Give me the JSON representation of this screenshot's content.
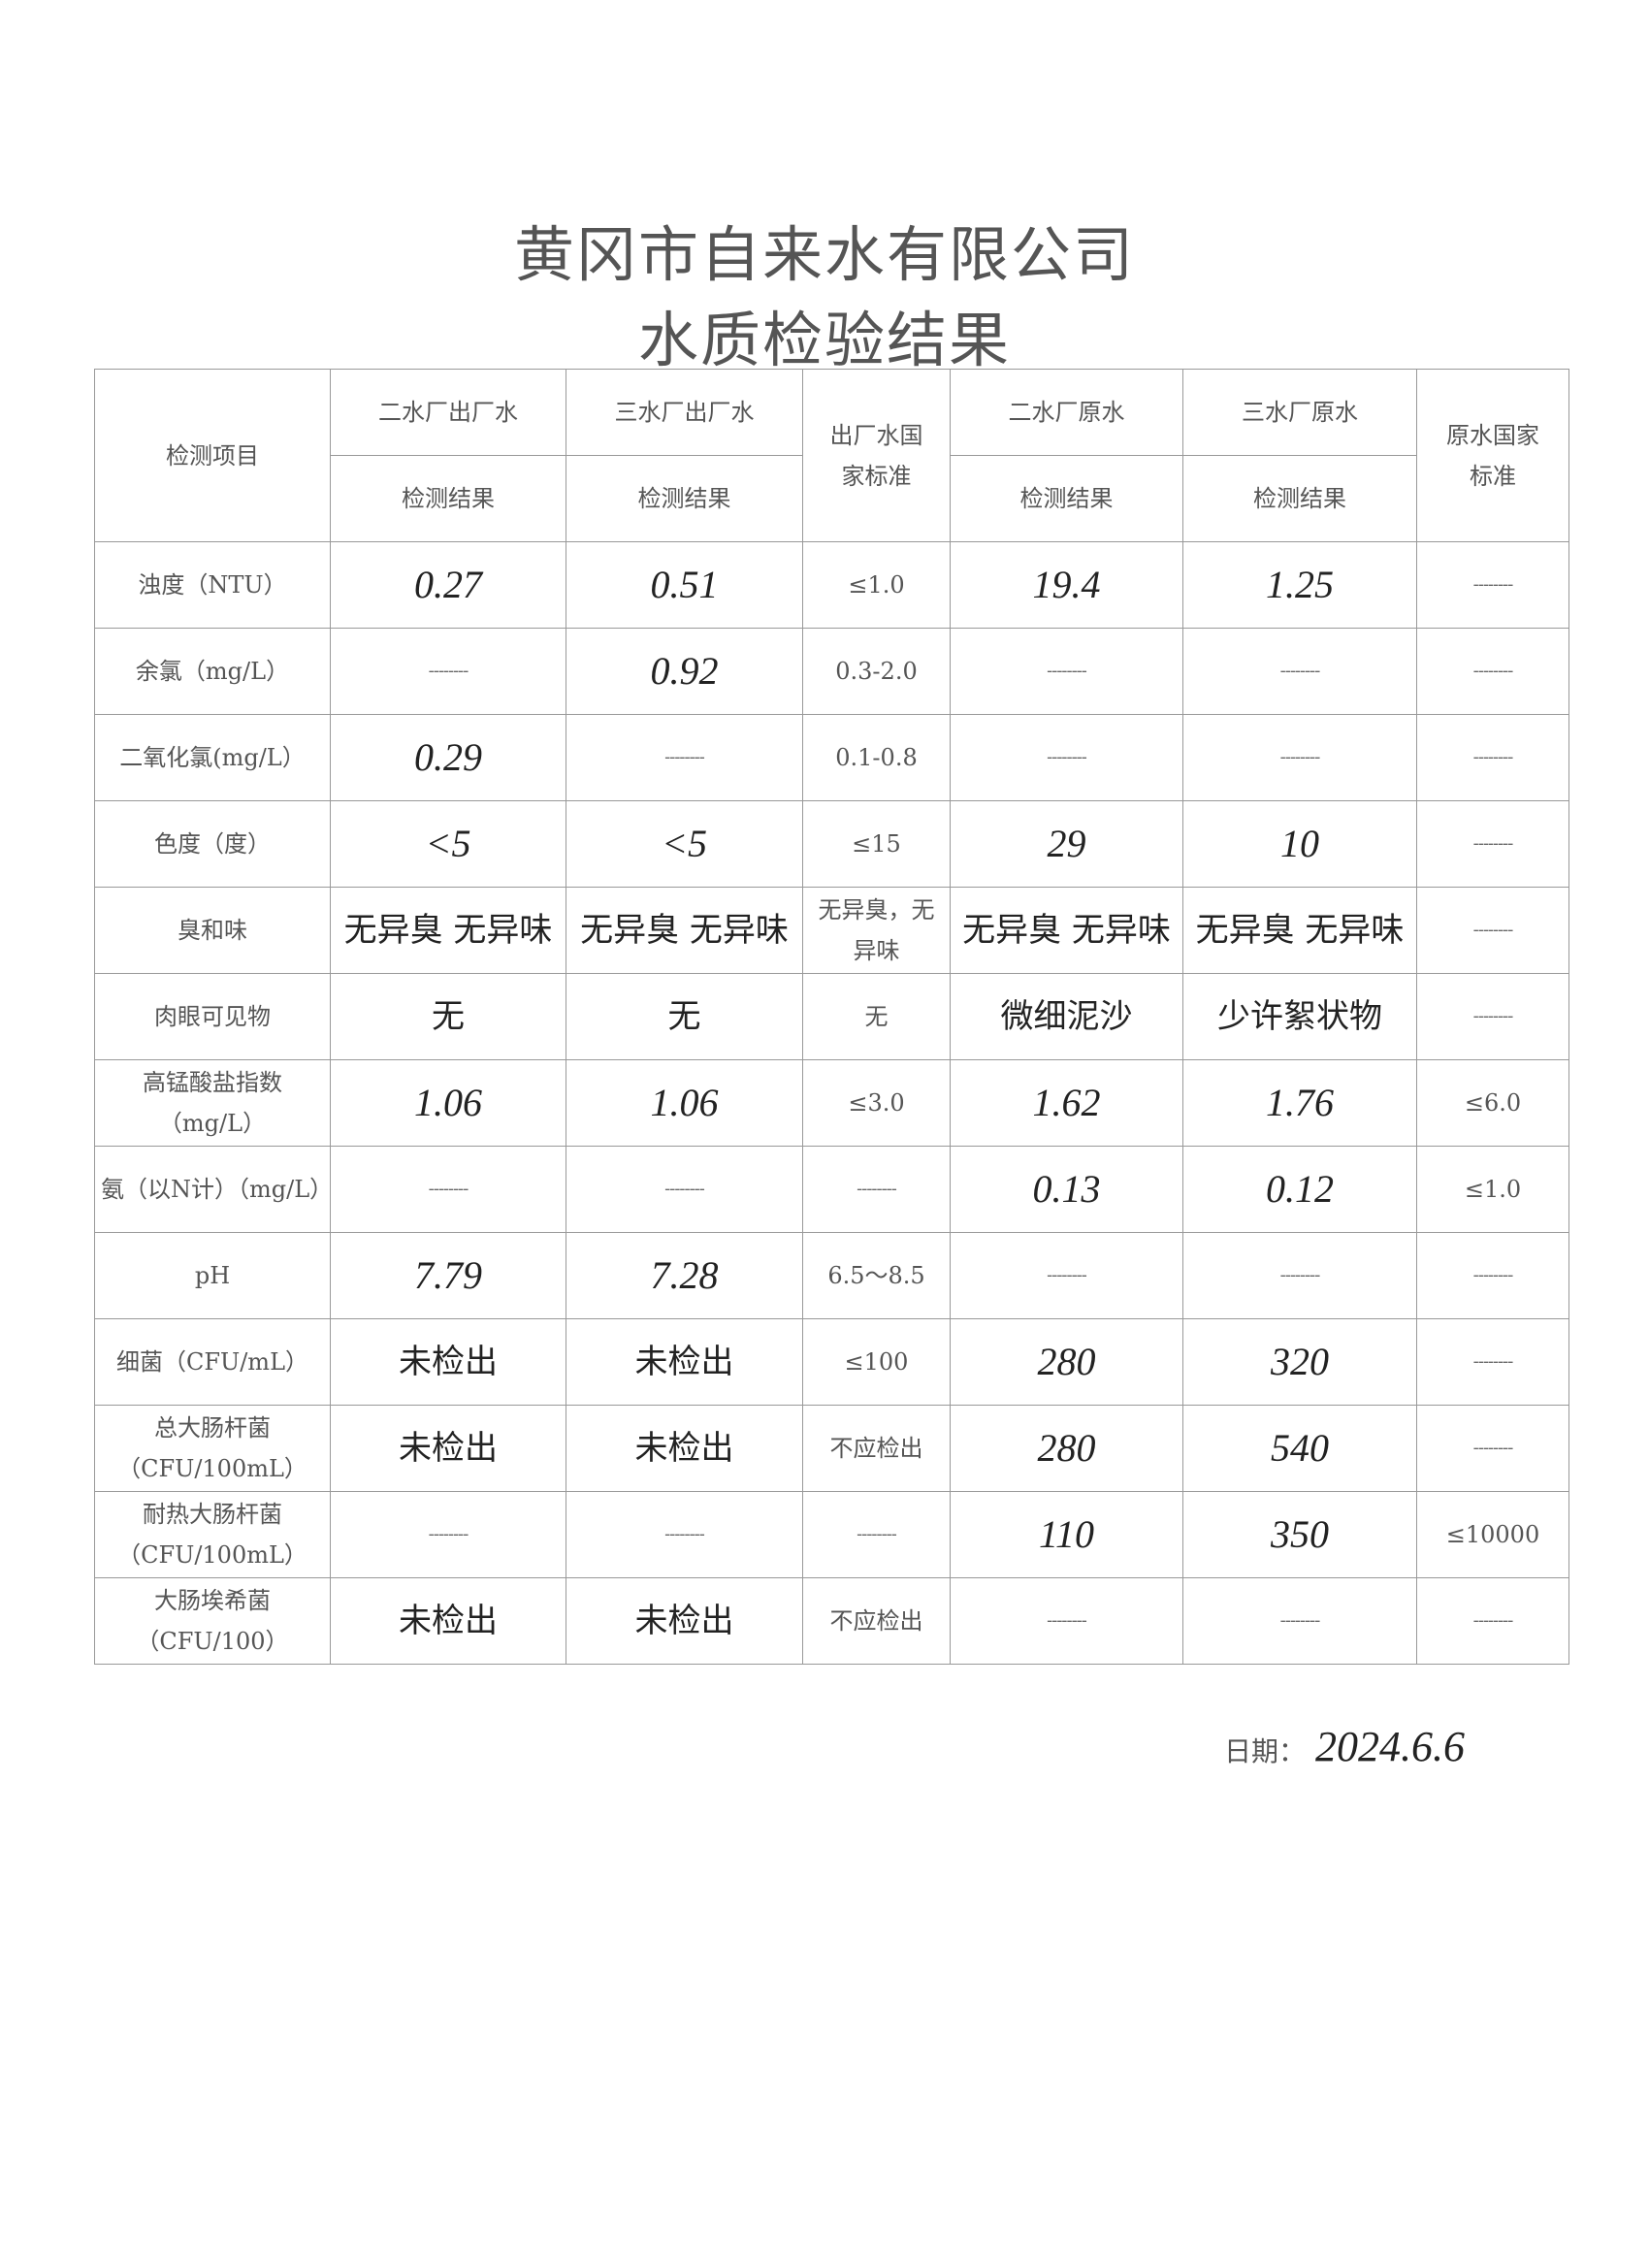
{
  "title_line1": "黄冈市自来水有限公司",
  "title_line2": "水质检验结果",
  "header": {
    "item": "检测项目",
    "col1": "二水厂出厂水",
    "col2": "三水厂出厂水",
    "col3": "出厂水国家标准",
    "col4": "二水厂原水",
    "col5": "三水厂原水",
    "col6": "原水国家标准",
    "sub": "检测结果"
  },
  "rows": [
    {
      "item": "浊度（NTU）",
      "v": [
        "0.27",
        "0.51",
        "≤1.0",
        "19.4",
        "1.25",
        "--------"
      ]
    },
    {
      "item": "余氯（mg/L）",
      "v": [
        "--------",
        "0.92",
        "0.3-2.0",
        "--------",
        "--------",
        "--------"
      ]
    },
    {
      "item": "二氧化氯(mg/L）",
      "v": [
        "0.29",
        "--------",
        "0.1-0.8",
        "--------",
        "--------",
        "--------"
      ]
    },
    {
      "item": "色度（度）",
      "v": [
        "<5",
        "<5",
        "≤15",
        "29",
        "10",
        "--------"
      ]
    },
    {
      "item": "臭和味",
      "v": [
        "无异臭 无异味",
        "无异臭 无异味",
        "无异臭，无异味",
        "无异臭 无异味",
        "无异臭 无异味",
        "--------"
      ]
    },
    {
      "item": "肉眼可见物",
      "v": [
        "无",
        "无",
        "无",
        "微细泥沙",
        "少许絮状物",
        "--------"
      ]
    },
    {
      "item": "高锰酸盐指数（mg/L）",
      "v": [
        "1.06",
        "1.06",
        "≤3.0",
        "1.62",
        "1.76",
        "≤6.0"
      ]
    },
    {
      "item": "氨（以N计）（mg/L）",
      "v": [
        "--------",
        "--------",
        "--------",
        "0.13",
        "0.12",
        "≤1.0"
      ]
    },
    {
      "item": "pH",
      "v": [
        "7.79",
        "7.28",
        "6.5～8.5",
        "--------",
        "--------",
        "--------"
      ]
    },
    {
      "item": "细菌（CFU/mL）",
      "v": [
        "未检出",
        "未检出",
        "≤100",
        "280",
        "320",
        "--------"
      ]
    },
    {
      "item": "总大肠杆菌（CFU/100mL）",
      "v": [
        "未检出",
        "未检出",
        "不应检出",
        "280",
        "540",
        "--------"
      ]
    },
    {
      "item": "耐热大肠杆菌（CFU/100mL）",
      "v": [
        "--------",
        "--------",
        "--------",
        "110",
        "350",
        "≤10000"
      ]
    },
    {
      "item": "大肠埃希菌（CFU/100）",
      "v": [
        "未检出",
        "未检出",
        "不应检出",
        "--------",
        "--------",
        "--------"
      ]
    }
  ],
  "date_label": "日期：",
  "date_value": "2024.6.6"
}
